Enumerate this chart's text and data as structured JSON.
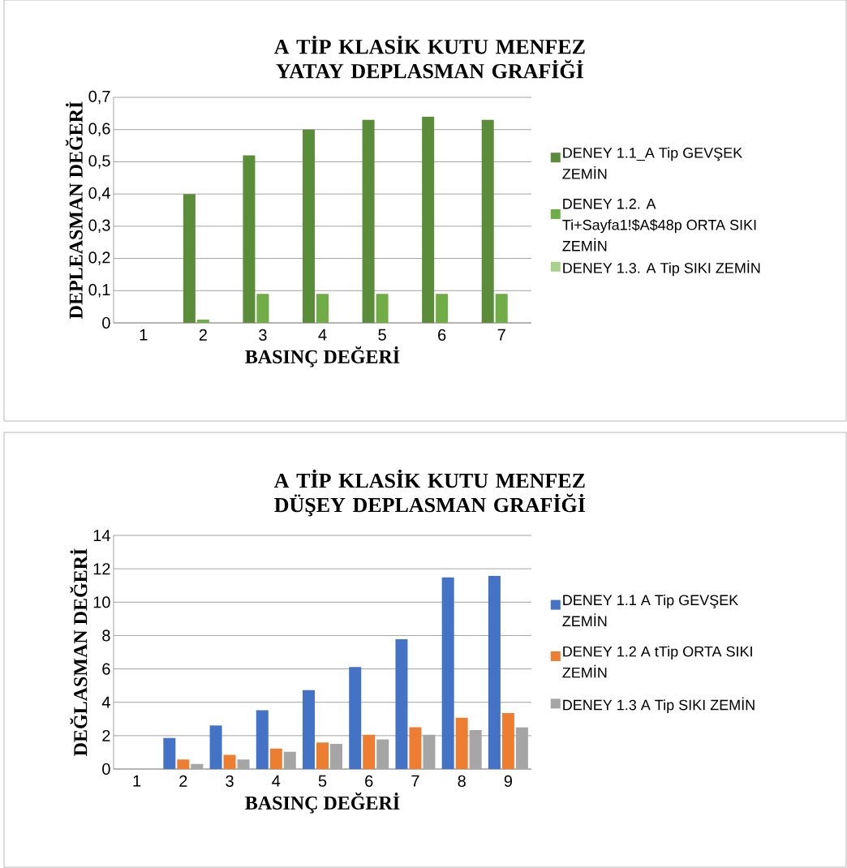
{
  "chart_data": [
    {
      "type": "bar",
      "title": "A TİP KLASİK KUTU MENFEZ YATAY DEPLASMAN GRAFİĞİ",
      "xlabel": "BASINÇ DEĞERİ",
      "ylabel": "DEPLEASMAN DEĞERİ",
      "categories": [
        "1",
        "2",
        "3",
        "4",
        "5",
        "6",
        "7"
      ],
      "series": [
        {
          "name": "DENEY 1.1_A Tip GEVŞEK ZEMİN",
          "color": "#5b8c39",
          "values": [
            0,
            0.4,
            0.52,
            0.6,
            0.63,
            0.64,
            0.63
          ]
        },
        {
          "name": "DENEY 1.2. A Ti+Sayfa1!$A$48p ORTA SIKI ZEMİN",
          "color": "#70ad47",
          "values": [
            0,
            0.01,
            0.09,
            0.09,
            0.09,
            0.09,
            0.09
          ]
        },
        {
          "name": "DENEY 1.3. A Tip SIKI ZEMİN",
          "color": "#a9d18e",
          "values": [
            0,
            0,
            0,
            0,
            0,
            0,
            0
          ]
        }
      ],
      "ylim": [
        0,
        0.7
      ],
      "yticks": [
        0,
        {
          "value": 0.1,
          "label": "0,1"
        },
        {
          "value": 0.2,
          "label": "0,2"
        },
        {
          "value": 0.3,
          "label": "0,3"
        },
        {
          "value": 0.4,
          "label": "0,4"
        },
        {
          "value": 0.5,
          "label": "0,5"
        },
        {
          "value": 0.6,
          "label": "0,6"
        },
        {
          "value": 0.7,
          "label": "0,7"
        }
      ],
      "grid": "y",
      "legend": "right"
    },
    {
      "type": "bar",
      "title": "A TİP KLASİK KUTU MENFEZ DÜŞEY DEPLASMAN GRAFİĞİ",
      "xlabel": "BASINÇ DEĞERİ",
      "ylabel": "DEĞLASMAN DEĞERİ",
      "categories": [
        "1",
        "2",
        "3",
        "4",
        "5",
        "6",
        "7",
        "8",
        "9"
      ],
      "series": [
        {
          "name": "DENEY 1.1 A Tip GEVŞEK ZEMİN",
          "color": "#4472c4",
          "values": [
            0,
            1.86,
            2.61,
            3.53,
            4.73,
            6.11,
            7.78,
            11.48,
            11.58
          ]
        },
        {
          "name": "DENEY 1.2 A tTip ORTA SIKI ZEMİN",
          "color": "#ed7d31",
          "values": [
            0,
            0.57,
            0.85,
            1.23,
            1.59,
            2.05,
            2.51,
            3.07,
            3.35
          ]
        },
        {
          "name": "DENEY 1.3 A Tip SIKI ZEMİN",
          "color": "#a5a5a5",
          "values": [
            0,
            0.31,
            0.57,
            1.03,
            1.51,
            1.77,
            2.05,
            2.33,
            2.51
          ]
        }
      ],
      "ylim": [
        0,
        14
      ],
      "yticks": [
        0,
        2,
        4,
        6,
        8,
        10,
        12,
        14
      ],
      "grid": "y",
      "legend": "right"
    }
  ]
}
